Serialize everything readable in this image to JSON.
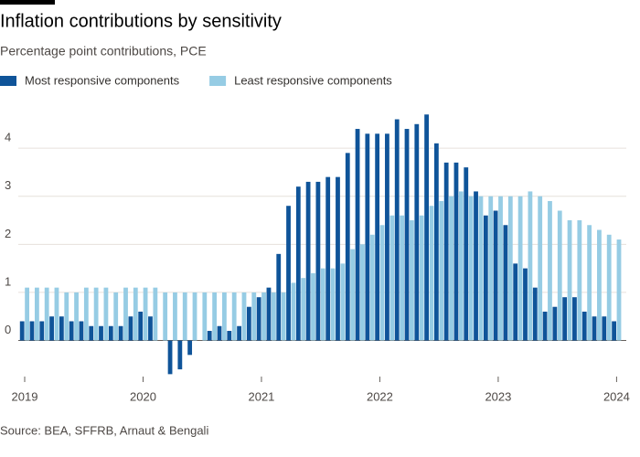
{
  "chart_data": {
    "type": "bar",
    "title": "Inflation contributions by sensitivity",
    "subtitle": "Percentage point contributions, PCE",
    "source": "Source: BEA, SFFRB, Arnaut & Bengali",
    "categories": [
      "2019",
      null,
      null,
      null,
      null,
      null,
      null,
      null,
      null,
      null,
      null,
      null,
      "2020",
      null,
      null,
      null,
      null,
      null,
      null,
      null,
      null,
      null,
      null,
      null,
      "2021",
      null,
      null,
      null,
      null,
      null,
      null,
      null,
      null,
      null,
      null,
      null,
      "2022",
      null,
      null,
      null,
      null,
      null,
      null,
      null,
      null,
      null,
      null,
      null,
      "2023",
      null,
      null,
      null,
      null,
      null,
      null,
      null,
      null,
      null,
      null,
      null,
      "2024"
    ],
    "series": [
      {
        "name": "Most responsive components",
        "color": "#0f5499",
        "values": [
          0.4,
          0.4,
          0.4,
          0.5,
          0.5,
          0.4,
          0.4,
          0.3,
          0.3,
          0.3,
          0.3,
          0.5,
          0.6,
          0.5,
          0,
          -0.7,
          -0.6,
          -0.3,
          0,
          0.2,
          0.3,
          0.2,
          0.3,
          0.7,
          0.9,
          1.1,
          1.8,
          2.8,
          3.2,
          3.3,
          3.3,
          3.4,
          3.4,
          3.9,
          4.4,
          4.3,
          4.3,
          4.3,
          4.6,
          4.4,
          4.5,
          4.7,
          4.1,
          3.7,
          3.7,
          3.6,
          3.1,
          2.6,
          2.7,
          2.4,
          1.6,
          1.5,
          1.1,
          0.6,
          0.7,
          0.9,
          0.9,
          0.6,
          0.5,
          0.5,
          0.4
        ]
      },
      {
        "name": "Least responsive components",
        "color": "#96cce4",
        "values": [
          1.1,
          1.1,
          1.1,
          1.1,
          1.0,
          1.0,
          1.1,
          1.1,
          1.1,
          1.0,
          1.1,
          1.1,
          1.1,
          1.1,
          1.0,
          1.0,
          1.0,
          1.0,
          1.0,
          1.0,
          1.0,
          1.0,
          1.0,
          1.0,
          1.0,
          1.0,
          1.0,
          1.2,
          1.3,
          1.4,
          1.5,
          1.5,
          1.6,
          1.9,
          2.0,
          2.2,
          2.4,
          2.6,
          2.6,
          2.5,
          2.6,
          2.8,
          2.9,
          3.0,
          3.1,
          3.0,
          3.0,
          3.0,
          3.0,
          3.0,
          3.0,
          3.1,
          3.0,
          2.9,
          2.7,
          2.5,
          2.5,
          2.4,
          2.3,
          2.2,
          2.1
        ]
      }
    ],
    "ylim": [
      -0.75,
      4.8
    ],
    "yticks": [
      0,
      1,
      2,
      3,
      4
    ],
    "grid": true,
    "legend": "top-left"
  }
}
